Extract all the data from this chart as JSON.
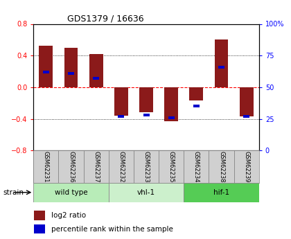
{
  "title": "GDS1379 / 16636",
  "samples": [
    "GSM62231",
    "GSM62236",
    "GSM62237",
    "GSM62232",
    "GSM62233",
    "GSM62235",
    "GSM62234",
    "GSM62238",
    "GSM62239"
  ],
  "log2_ratio": [
    0.52,
    0.5,
    0.42,
    -0.36,
    -0.32,
    -0.43,
    -0.17,
    0.6,
    -0.37
  ],
  "percentile_rank": [
    62,
    61,
    57,
    27,
    28,
    26,
    35,
    66,
    27
  ],
  "groups": [
    {
      "label": "wild type",
      "start": 0,
      "end": 3,
      "color": "#b8ecb8"
    },
    {
      "label": "vhl-1",
      "start": 3,
      "end": 6,
      "color": "#ccf0cc"
    },
    {
      "label": "hif-1",
      "start": 6,
      "end": 9,
      "color": "#55cc55"
    }
  ],
  "strain_label": "strain",
  "ylim_left": [
    -0.8,
    0.8
  ],
  "ylim_right": [
    0,
    100
  ],
  "yticks_left": [
    -0.8,
    -0.4,
    0,
    0.4,
    0.8
  ],
  "yticks_right": [
    0,
    25,
    50,
    75,
    100
  ],
  "bar_width": 0.55,
  "bar_color_log2": "#8b1a1a",
  "bar_color_pct": "#0000cc",
  "legend_log2": "log2 ratio",
  "legend_pct": "percentile rank within the sample",
  "bg_color": "#ffffff",
  "grid_color": "#000000",
  "zero_line_color": "#ff0000",
  "sample_box_color": "#d0d0d0"
}
